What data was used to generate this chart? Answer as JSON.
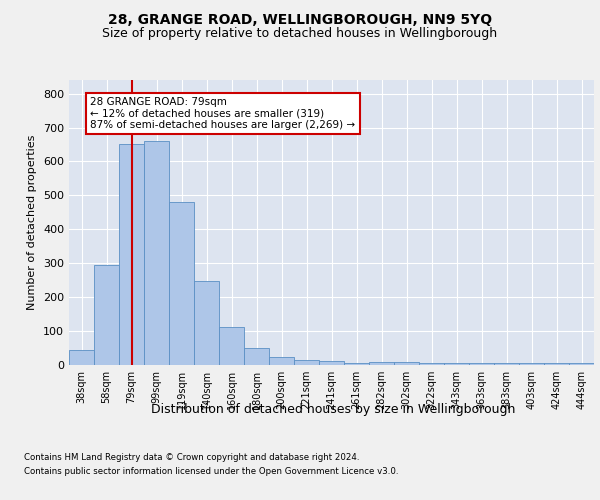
{
  "title1": "28, GRANGE ROAD, WELLINGBOROUGH, NN9 5YQ",
  "title2": "Size of property relative to detached houses in Wellingborough",
  "xlabel": "Distribution of detached houses by size in Wellingborough",
  "ylabel": "Number of detached properties",
  "footer1": "Contains HM Land Registry data © Crown copyright and database right 2024.",
  "footer2": "Contains public sector information licensed under the Open Government Licence v3.0.",
  "categories": [
    "38sqm",
    "58sqm",
    "79sqm",
    "99sqm",
    "119sqm",
    "140sqm",
    "160sqm",
    "180sqm",
    "200sqm",
    "221sqm",
    "241sqm",
    "261sqm",
    "282sqm",
    "302sqm",
    "322sqm",
    "343sqm",
    "363sqm",
    "383sqm",
    "403sqm",
    "424sqm",
    "444sqm"
  ],
  "values": [
    45,
    295,
    650,
    660,
    480,
    248,
    113,
    50,
    25,
    15,
    13,
    5,
    8,
    8,
    5,
    5,
    5,
    5,
    5,
    5,
    5
  ],
  "bar_color": "#aec6e8",
  "bar_edge_color": "#5a8fc4",
  "highlight_index": 2,
  "highlight_line_color": "#cc0000",
  "annotation_text": "28 GRANGE ROAD: 79sqm\n← 12% of detached houses are smaller (319)\n87% of semi-detached houses are larger (2,269) →",
  "annotation_box_color": "#cc0000",
  "annotation_text_color": "#000000",
  "ylim": [
    0,
    840
  ],
  "yticks": [
    0,
    100,
    200,
    300,
    400,
    500,
    600,
    700,
    800
  ],
  "plot_bg_color": "#dde4f0",
  "fig_bg_color": "#f0f0f0",
  "grid_color": "#ffffff",
  "title1_fontsize": 10,
  "title2_fontsize": 9,
  "xlabel_fontsize": 9,
  "ylabel_fontsize": 8,
  "ann_fontsize": 7.5
}
